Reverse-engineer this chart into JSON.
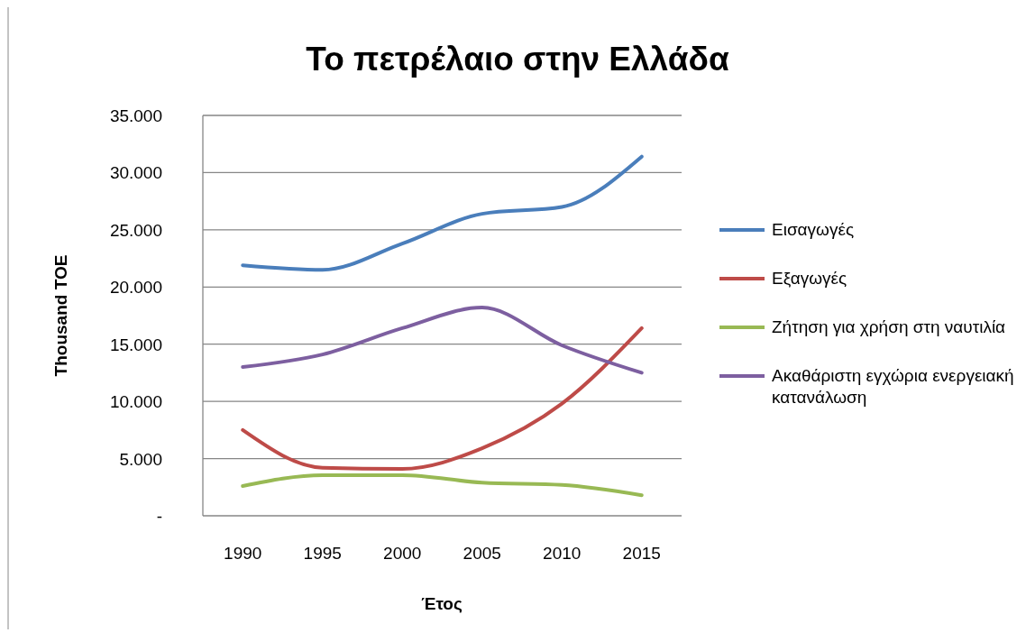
{
  "chart_data": {
    "type": "line",
    "title": "Το πετρέλαιο στην Ελλάδα",
    "xlabel": "Έτος",
    "ylabel": "Thousand TOE",
    "categories": [
      "1990",
      "1995",
      "2000",
      "2005",
      "2010",
      "2015"
    ],
    "series": [
      {
        "name": "Εισαγωγές",
        "color": "#4a7ebb",
        "values": [
          21900,
          21500,
          23800,
          26400,
          27000,
          31400
        ]
      },
      {
        "name": "Εξαγωγές",
        "color": "#be4b48",
        "values": [
          7500,
          4200,
          4100,
          5900,
          9800,
          16400
        ]
      },
      {
        "name": "Ζήτηση για χρήση στη ναυτιλία",
        "color": "#98b954",
        "values": [
          2600,
          3550,
          3550,
          2900,
          2700,
          1800
        ]
      },
      {
        "name": "Ακαθάριστη εγχώρια ενεργειακή κατανάλωση",
        "color": "#7d5fa0",
        "values": [
          13000,
          14100,
          16400,
          18200,
          14900,
          12500
        ]
      }
    ],
    "ylim": [
      0,
      35000
    ],
    "yticks": [
      {
        "value": 0,
        "label": "-"
      },
      {
        "value": 5000,
        "label": "5.000"
      },
      {
        "value": 10000,
        "label": "10.000"
      },
      {
        "value": 15000,
        "label": "15.000"
      },
      {
        "value": 20000,
        "label": "20.000"
      },
      {
        "value": 25000,
        "label": "25.000"
      },
      {
        "value": 30000,
        "label": "30.000"
      },
      {
        "value": 35000,
        "label": "35.000"
      }
    ],
    "grid": "y",
    "legend": "right",
    "marker": "none",
    "line_style": "solid"
  }
}
